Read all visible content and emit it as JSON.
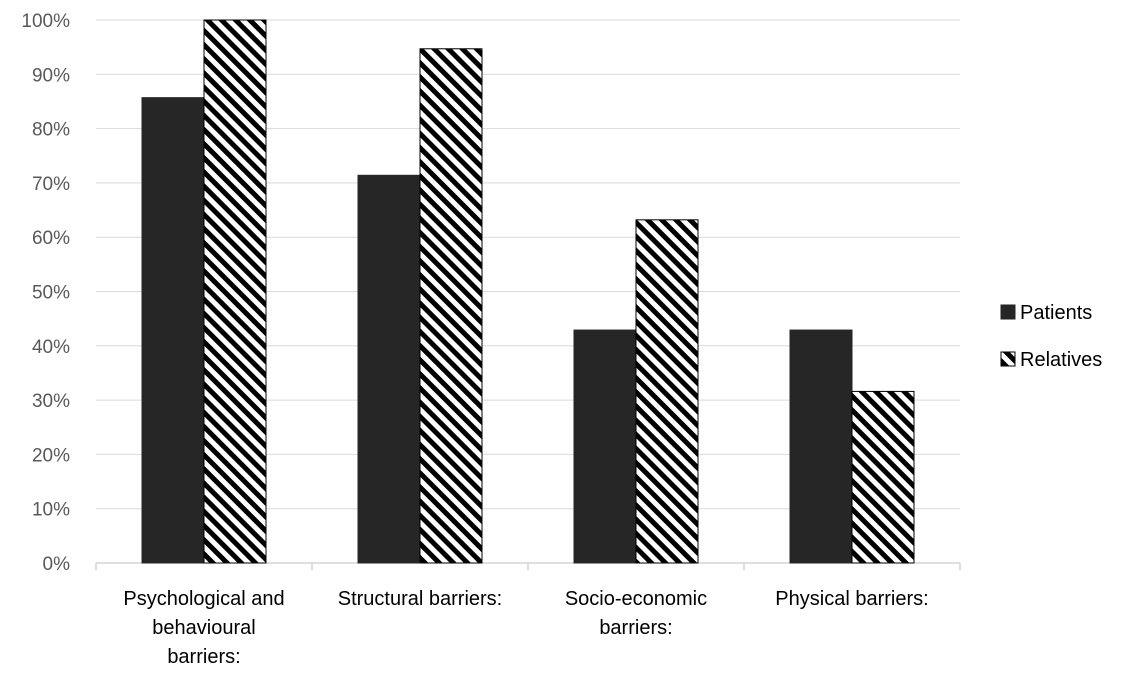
{
  "chart_data": {
    "type": "bar",
    "categories": [
      [
        "Psychological and",
        "behavioural",
        "barriers:"
      ],
      [
        "Structural barriers:"
      ],
      [
        "Socio-economic",
        "barriers:"
      ],
      [
        "Physical barriers:"
      ]
    ],
    "series": [
      {
        "name": "Patients",
        "values": [
          85.7,
          71.4,
          42.9,
          42.9
        ],
        "fill": "solid",
        "color": "#262626"
      },
      {
        "name": "Relatives",
        "values": [
          100,
          94.7,
          63.2,
          31.6
        ],
        "fill": "diagonal-hatch",
        "color": "#000000"
      }
    ],
    "y_ticks": [
      "0%",
      "10%",
      "20%",
      "30%",
      "40%",
      "50%",
      "60%",
      "70%",
      "80%",
      "90%",
      "100%"
    ],
    "ylim": [
      0,
      100
    ],
    "grid": true,
    "legend": "right",
    "title": "",
    "xlabel": "",
    "ylabel": ""
  }
}
